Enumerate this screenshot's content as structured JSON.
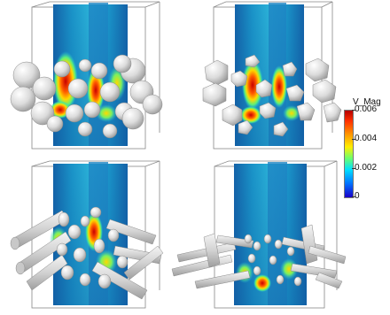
{
  "legend": {
    "title": "V_Mag",
    "ticks": [
      "0.006",
      "0.004",
      "0.002",
      "0"
    ]
  },
  "panels": [
    {
      "particle_shape": "spheres"
    },
    {
      "particle_shape": "polyhedra"
    },
    {
      "particle_shape": "cylinders"
    },
    {
      "particle_shape": "rods"
    }
  ]
}
